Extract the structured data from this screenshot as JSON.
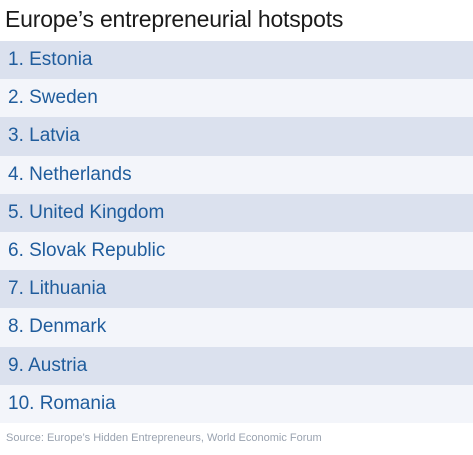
{
  "title": "Europe’s entrepreneurial hotspots",
  "rankings": [
    "1. Estonia",
    "2. Sweden",
    "3. Latvia",
    "4. Netherlands",
    "5. United Kingdom",
    "6. Slovak Republic",
    "7. Lithuania",
    "8. Denmark",
    "9. Austria",
    "10. Romania"
  ],
  "source": "Source: Europe’s Hidden Entrepreneurs, World Economic Forum",
  "colors": {
    "item_text": "#1f5c9c",
    "row_dark": "#dbe1ee",
    "row_light": "#f3f5fa",
    "source_text": "#9aa3b0"
  }
}
